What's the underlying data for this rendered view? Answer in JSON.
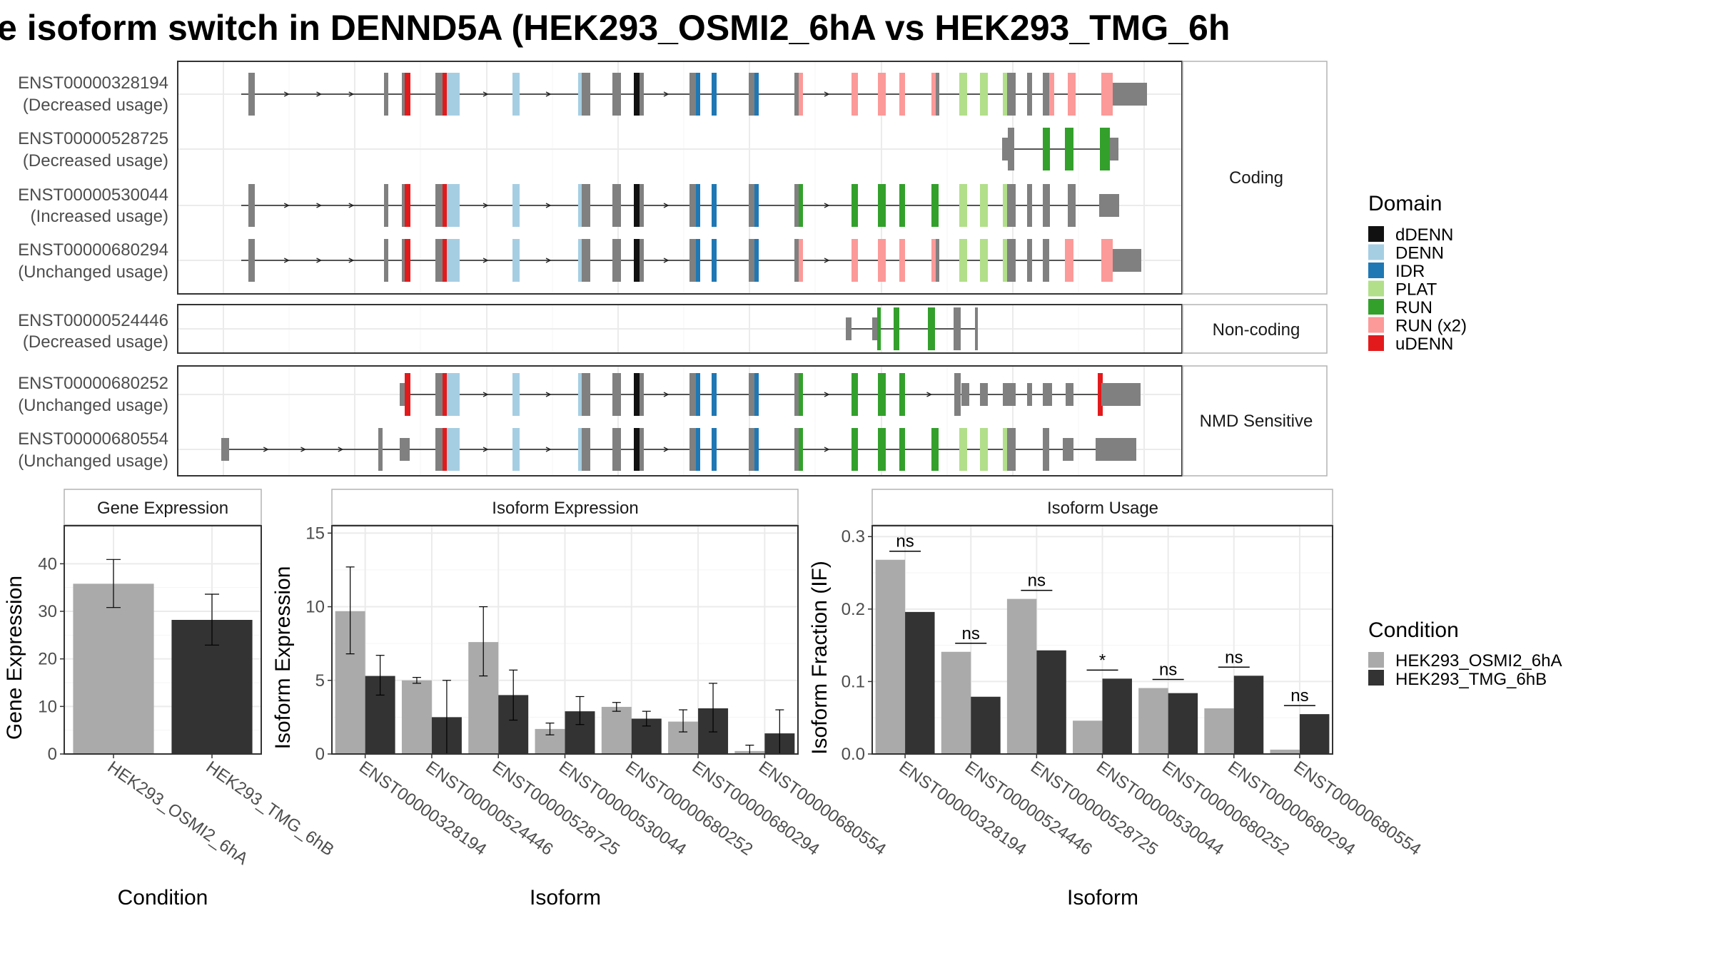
{
  "title": "e isoform switch in DENND5A (HEK293_OSMI2_6hA vs HEK293_TMG_6h",
  "colors": {
    "dDENN": "#111111",
    "DENN": "#a6cee3",
    "IDR": "#1f78b4",
    "PLAT": "#b2df8a",
    "RUN": "#33a02c",
    "RUN (x2)": "#fb9a99",
    "uDENN": "#e31a1c",
    "exon": "#808080",
    "cond1": "#aaaaaa",
    "cond2": "#333333"
  },
  "structure": {
    "groups": [
      {
        "label": "Coding",
        "transcripts": [
          {
            "id": "ENST00000328194",
            "usage": "(Decreased usage)"
          },
          {
            "id": "ENST00000528725",
            "usage": "(Decreased usage)"
          },
          {
            "id": "ENST00000530044",
            "usage": "(Increased usage)"
          },
          {
            "id": "ENST00000680294",
            "usage": "(Unchanged usage)"
          }
        ]
      },
      {
        "label": "Non-coding",
        "transcripts": [
          {
            "id": "ENST00000524446",
            "usage": "(Decreased usage)"
          }
        ]
      },
      {
        "label": "NMD Sensitive",
        "transcripts": [
          {
            "id": "ENST00000680252",
            "usage": "(Unchanged usage)"
          },
          {
            "id": "ENST00000680554",
            "usage": "(Unchanged usage)"
          }
        ]
      }
    ]
  },
  "legend_domain": {
    "title": "Domain",
    "items": [
      "dDENN",
      "DENN",
      "IDR",
      "PLAT",
      "RUN",
      "RUN (x2)",
      "uDENN"
    ]
  },
  "legend_condition": {
    "title": "Condition",
    "items": [
      "HEK293_OSMI2_6hA",
      "HEK293_TMG_6hB"
    ]
  },
  "chart_data": [
    {
      "type": "bar",
      "title": "Gene Expression",
      "xlabel": "Condition",
      "ylabel": "Gene Expression",
      "ylim": [
        0,
        48
      ],
      "yticks": [
        0,
        10,
        20,
        30,
        40
      ],
      "categories": [
        "HEK293_OSMI2_6hA",
        "HEK293_TMG_6hB"
      ],
      "values": [
        35.8,
        28.2
      ],
      "errors": [
        [
          30.8,
          40.9
        ],
        [
          22.9,
          33.6
        ]
      ]
    },
    {
      "type": "bar",
      "title": "Isoform Expression",
      "xlabel": "Isoform",
      "ylabel": "Isoform Expression",
      "ylim": [
        0,
        15.5
      ],
      "yticks": [
        0,
        5,
        10,
        15
      ],
      "categories": [
        "ENST00000328194",
        "ENST00000524446",
        "ENST00000528725",
        "ENST00000530044",
        "ENST00000680252",
        "ENST00000680294",
        "ENST00000680554"
      ],
      "series": [
        {
          "name": "HEK293_OSMI2_6hA",
          "values": [
            9.7,
            5.0,
            7.6,
            1.7,
            3.2,
            2.2,
            0.2
          ],
          "errors": [
            [
              6.8,
              12.7
            ],
            [
              4.8,
              5.2
            ],
            [
              5.3,
              10.0
            ],
            [
              1.3,
              2.1
            ],
            [
              2.9,
              3.5
            ],
            [
              1.5,
              3.0
            ],
            [
              0.0,
              0.6
            ]
          ]
        },
        {
          "name": "HEK293_TMG_6hB",
          "values": [
            5.3,
            2.5,
            4.0,
            2.9,
            2.4,
            3.1,
            1.4
          ],
          "errors": [
            [
              4.0,
              6.7
            ],
            [
              0.0,
              5.0
            ],
            [
              2.3,
              5.7
            ],
            [
              2.0,
              3.9
            ],
            [
              1.9,
              2.9
            ],
            [
              1.5,
              4.8
            ],
            [
              0.0,
              3.0
            ]
          ]
        }
      ]
    },
    {
      "type": "bar",
      "title": "Isoform Usage",
      "xlabel": "Isoform",
      "ylabel": "Isoform Fraction (IF)",
      "ylim": [
        0,
        0.315
      ],
      "yticks": [
        0.0,
        0.1,
        0.2,
        0.3
      ],
      "categories": [
        "ENST00000328194",
        "ENST00000524446",
        "ENST00000528725",
        "ENST00000530044",
        "ENST00000680252",
        "ENST00000680294",
        "ENST00000680554"
      ],
      "series": [
        {
          "name": "HEK293_OSMI2_6hA",
          "values": [
            0.268,
            0.141,
            0.214,
            0.046,
            0.091,
            0.063,
            0.006
          ]
        },
        {
          "name": "HEK293_TMG_6hB",
          "values": [
            0.196,
            0.079,
            0.143,
            0.104,
            0.084,
            0.108,
            0.055
          ]
        }
      ],
      "significance": [
        "ns",
        "ns",
        "ns",
        "*",
        "ns",
        "ns",
        "ns"
      ]
    }
  ]
}
